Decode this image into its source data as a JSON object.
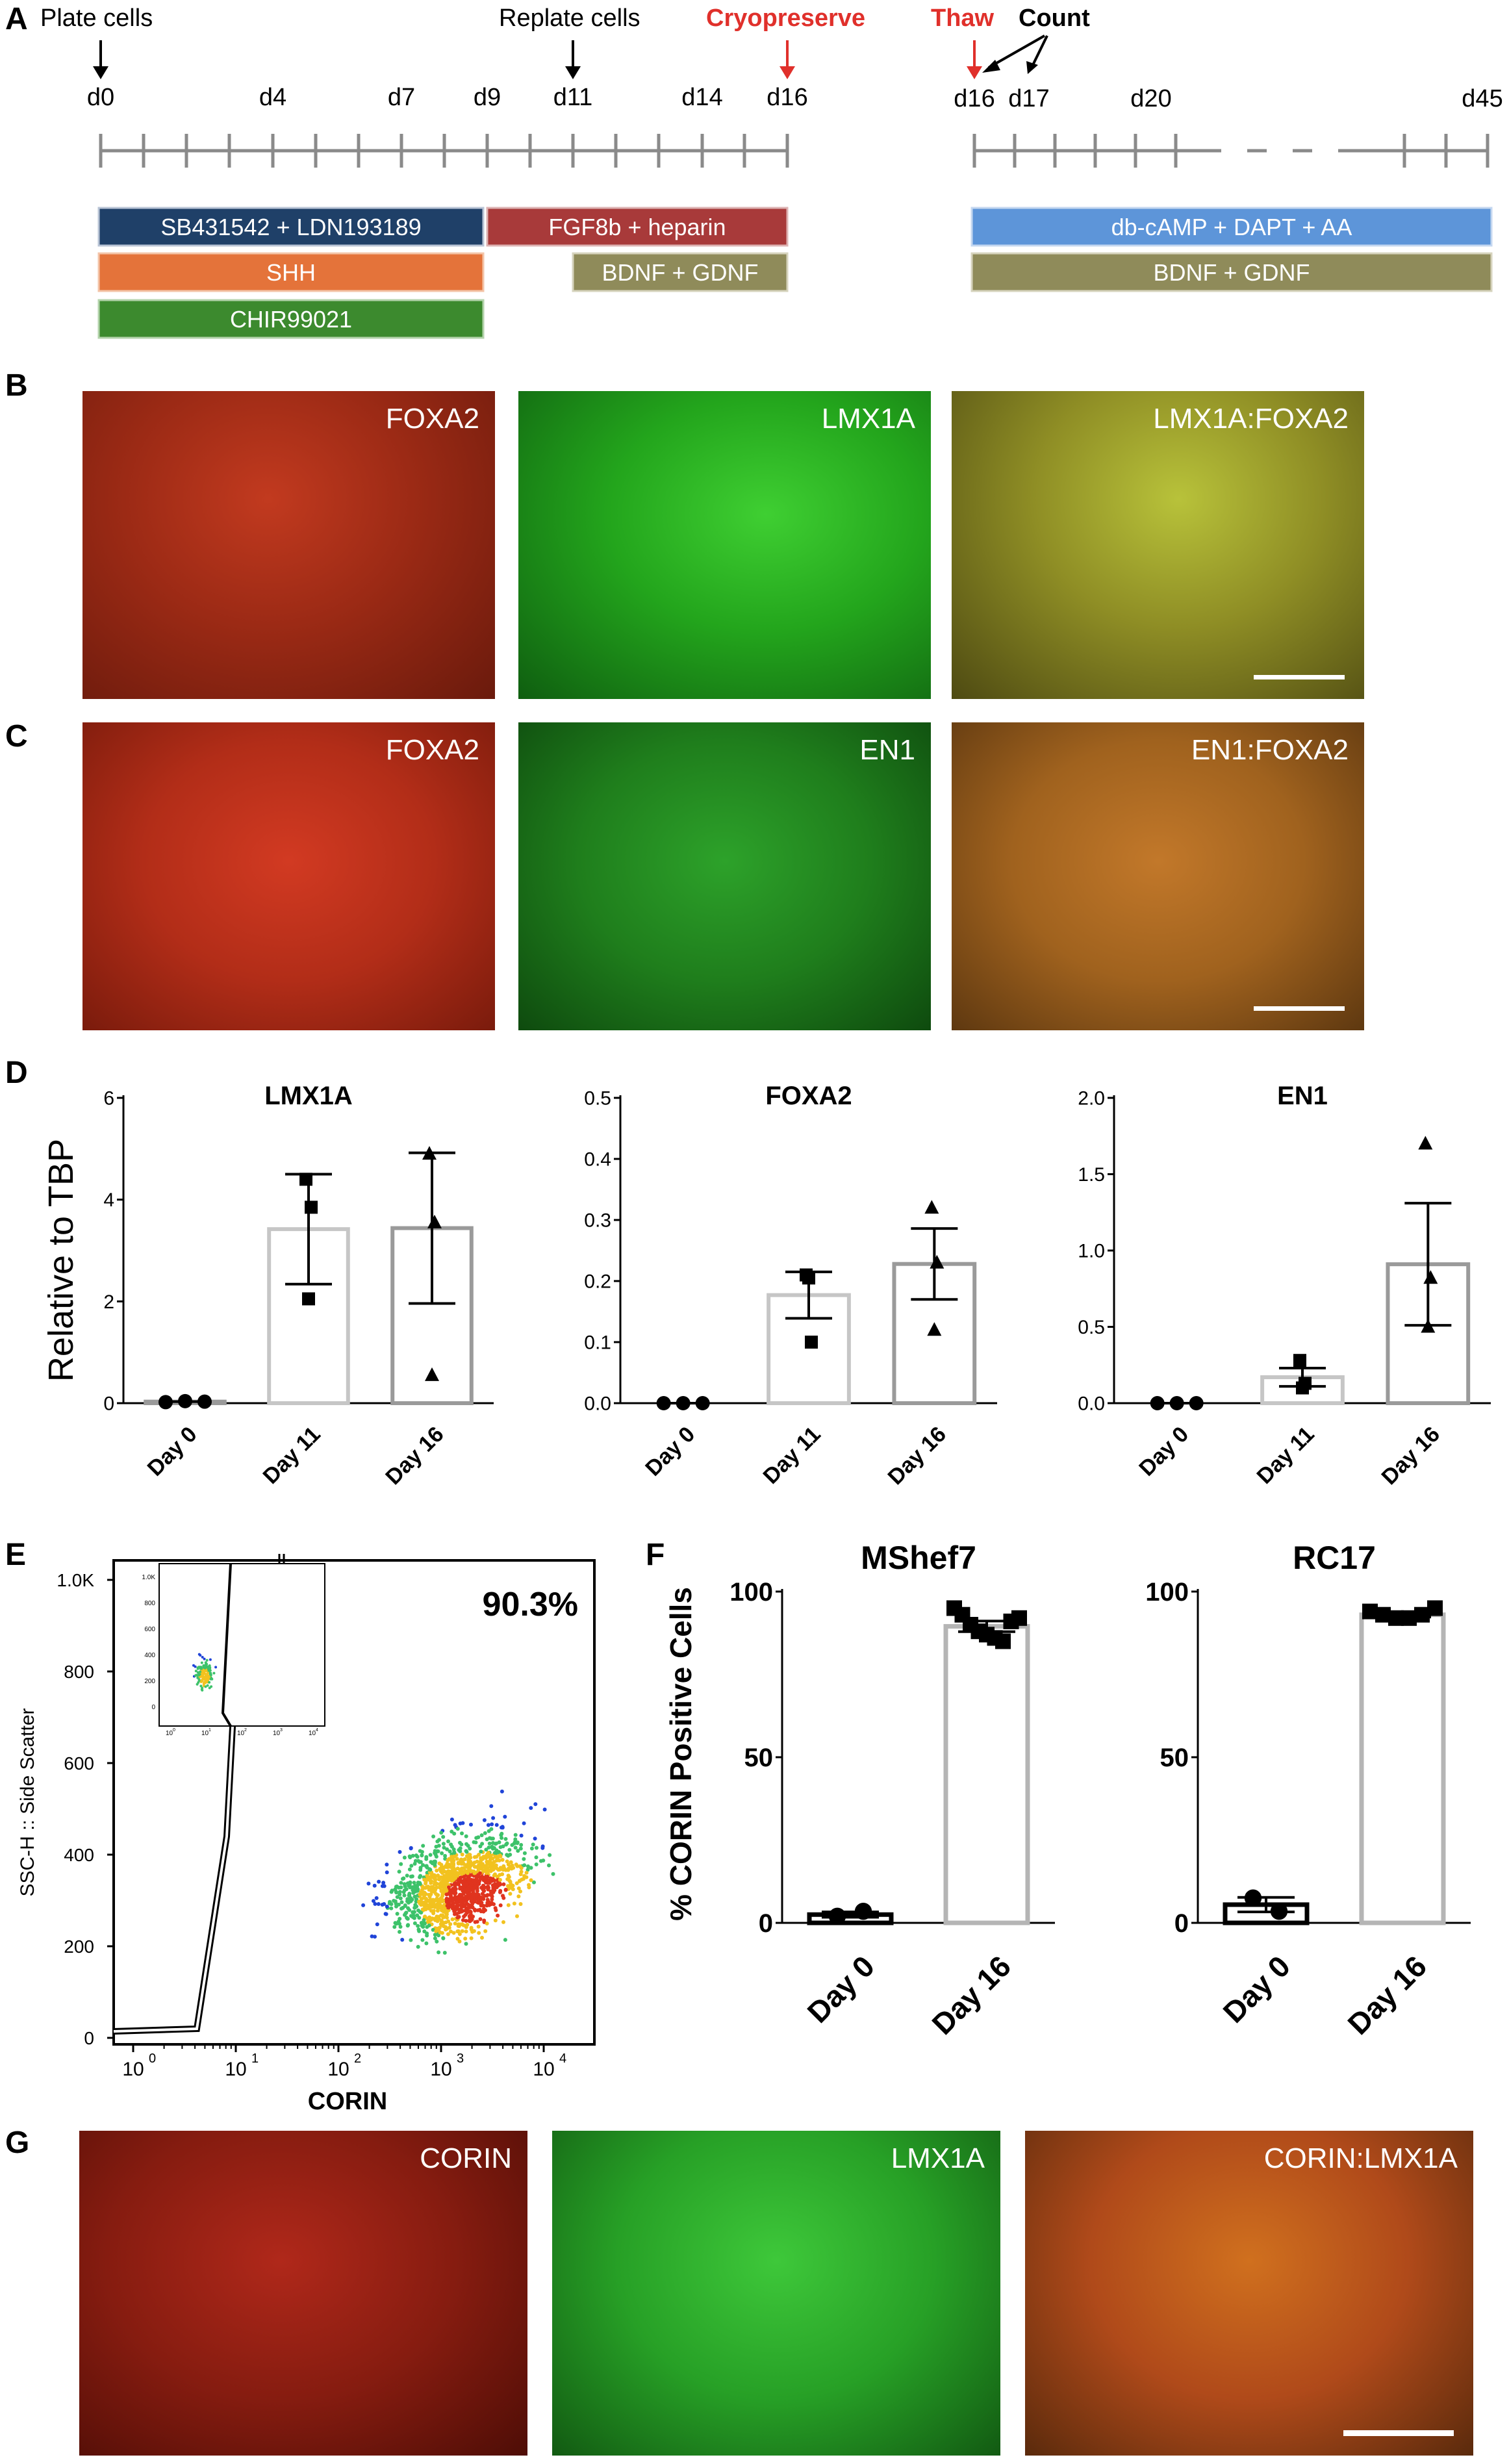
{
  "panel_labels": {
    "A": "A",
    "B": "B",
    "C": "C",
    "D": "D",
    "E": "E",
    "F": "F",
    "G": "G"
  },
  "timeline": {
    "events": {
      "plate": "Plate cells",
      "replate": "Replate cells",
      "cryo": "Cryopreserve",
      "thaw": "Thaw",
      "count": "Count"
    },
    "days_left": [
      "d0",
      "d4",
      "d7",
      "d9",
      "d11",
      "d14",
      "d16"
    ],
    "days_right": [
      "d16",
      "d17",
      "d20",
      "d45"
    ],
    "treatments": {
      "sb_ldn": "SB431542 + LDN193189",
      "fgf8b": "FGF8b + heparin",
      "shh": "SHH",
      "bdnf_left": "BDNF + GDNF",
      "chir": "CHIR99021",
      "dbcamp": "db-cAMP + DAPT + AA",
      "bdnf_right": "BDNF + GDNF"
    },
    "colors": {
      "navy": "#1f4068",
      "red_bar": "#a83a3a",
      "orange": "#e4733a",
      "olive": "#8f8b5a",
      "green": "#3c8a2e",
      "blue": "#5d95d9",
      "event_red": "#e0302b"
    }
  },
  "panel_b": {
    "labels": [
      "FOXA2",
      "LMX1A",
      "LMX1A:FOXA2"
    ]
  },
  "panel_c": {
    "labels": [
      "FOXA2",
      "EN1",
      "EN1:FOXA2"
    ]
  },
  "panel_g": {
    "labels": [
      "CORIN",
      "LMX1A",
      "CORIN:LMX1A"
    ]
  },
  "chart_data": [
    {
      "panel": "D",
      "type": "bar",
      "title": "LMX1A",
      "ylabel": "Relative to TBP",
      "categories": [
        "Day 0",
        "Day 11",
        "Day 16"
      ],
      "values": [
        0.03,
        3.42,
        3.44
      ],
      "sem": [
        0.0,
        1.08,
        1.48
      ],
      "points": [
        [
          0.02,
          0.04,
          0.03
        ],
        [
          4.4,
          2.05,
          3.85
        ],
        [
          4.9,
          0.55,
          3.55
        ]
      ],
      "markers": [
        "circle",
        "square",
        "triangle"
      ],
      "ylim": [
        0,
        6
      ],
      "yticks": [
        "0",
        "2",
        "4",
        "6"
      ]
    },
    {
      "panel": "D",
      "type": "bar",
      "title": "FOXA2",
      "categories": [
        "Day 0",
        "Day 11",
        "Day 16"
      ],
      "values": [
        0.0,
        0.177,
        0.228
      ],
      "sem": [
        0.0,
        0.038,
        0.058
      ],
      "points": [
        [
          0.0,
          0.0,
          0.0
        ],
        [
          0.21,
          0.205,
          0.1
        ],
        [
          0.32,
          0.12,
          0.23
        ]
      ],
      "markers": [
        "circle",
        "square",
        "triangle"
      ],
      "ylim": [
        0,
        0.5
      ],
      "yticks": [
        "0.0",
        "0.1",
        "0.2",
        "0.3",
        "0.4",
        "0.5"
      ]
    },
    {
      "panel": "D",
      "type": "bar",
      "title": "EN1",
      "categories": [
        "Day 0",
        "Day 11",
        "Day 16"
      ],
      "values": [
        0.0,
        0.17,
        0.91
      ],
      "sem": [
        0.0,
        0.06,
        0.4
      ],
      "points": [
        [
          0.0,
          0.0,
          0.0
        ],
        [
          0.28,
          0.1,
          0.13
        ],
        [
          1.7,
          0.5,
          0.82
        ]
      ],
      "markers": [
        "circle",
        "square",
        "triangle"
      ],
      "ylim": [
        0,
        2.0
      ],
      "yticks": [
        "0.0",
        "0.5",
        "1.0",
        "1.5",
        "2.0"
      ]
    },
    {
      "panel": "E",
      "type": "scatter",
      "xlabel": "CORIN",
      "ylabel": "SSC-H :: Side Scatter",
      "annotation": "90.3%",
      "x_ticks": [
        "10",
        "10",
        "10",
        "10",
        "10"
      ],
      "x_tick_exponents": [
        "0",
        "1",
        "2",
        "3",
        "4"
      ],
      "y_ticks": [
        "0",
        "200",
        "400",
        "600",
        "800",
        "1.0K"
      ],
      "inset_y_ticks": [
        "1.0K",
        "800",
        "600",
        "400",
        "200",
        "0"
      ],
      "inset_x_ticks": [
        "10",
        "10",
        "10",
        "10",
        "10"
      ],
      "inset_x_tick_exponents": [
        "0",
        "1",
        "2",
        "3",
        "4"
      ]
    },
    {
      "panel": "F",
      "type": "bar",
      "title": "MShef7",
      "ylabel": "% CORIN Positive Cells",
      "categories": [
        "Day 0",
        "Day 16"
      ],
      "values": [
        2.5,
        89.5
      ],
      "sem": [
        0.8,
        1.6
      ],
      "points": [
        [
          2.0,
          3.5
        ],
        [
          95,
          93,
          90,
          88,
          87,
          86,
          85,
          91,
          92
        ]
      ],
      "markers": [
        "circle",
        "square"
      ],
      "ylim": [
        0,
        100
      ],
      "yticks": [
        "0",
        "50",
        "100"
      ]
    },
    {
      "panel": "F",
      "type": "bar",
      "title": "RC17",
      "categories": [
        "Day 0",
        "Day 16"
      ],
      "values": [
        5.5,
        93.0
      ],
      "sem": [
        2.2,
        0.7
      ],
      "points": [
        [
          7.5,
          3.5
        ],
        [
          94,
          93,
          92,
          92,
          93,
          95
        ]
      ],
      "markers": [
        "circle",
        "square"
      ],
      "ylim": [
        0,
        100
      ],
      "yticks": [
        "0",
        "50",
        "100"
      ]
    }
  ]
}
